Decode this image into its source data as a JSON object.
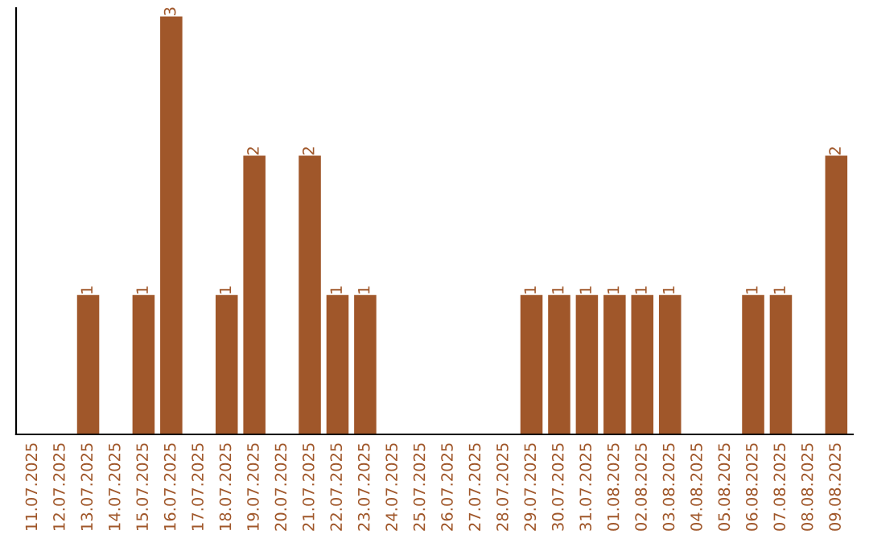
{
  "chart_data": {
    "type": "bar",
    "categories": [
      "11.07.2025",
      "12.07.2025",
      "13.07.2025",
      "14.07.2025",
      "15.07.2025",
      "16.07.2025",
      "17.07.2025",
      "18.07.2025",
      "19.07.2025",
      "20.07.2025",
      "21.07.2025",
      "22.07.2025",
      "23.07.2025",
      "24.07.2025",
      "25.07.2025",
      "26.07.2025",
      "27.07.2025",
      "28.07.2025",
      "29.07.2025",
      "30.07.2025",
      "31.07.2025",
      "01.08.2025",
      "02.08.2025",
      "03.08.2025",
      "04.08.2025",
      "05.08.2025",
      "06.08.2025",
      "07.08.2025",
      "08.08.2025",
      "09.08.2025"
    ],
    "values": [
      0,
      0,
      1,
      0,
      1,
      3,
      0,
      1,
      2,
      0,
      2,
      1,
      1,
      0,
      0,
      0,
      0,
      0,
      1,
      1,
      1,
      1,
      1,
      1,
      0,
      0,
      1,
      1,
      0,
      2
    ],
    "value_labels": [
      null,
      null,
      "1",
      null,
      "1",
      "3",
      null,
      "1",
      "2",
      null,
      "2",
      "1",
      "1",
      null,
      null,
      null,
      null,
      null,
      "1",
      "1",
      "1",
      "1",
      "1",
      "1",
      null,
      null,
      "1",
      "1",
      null,
      "2"
    ],
    "color": "#a0572a",
    "ylim": [
      0,
      3.06
    ],
    "tick_labels": "x",
    "grid": false,
    "legend": false
  }
}
